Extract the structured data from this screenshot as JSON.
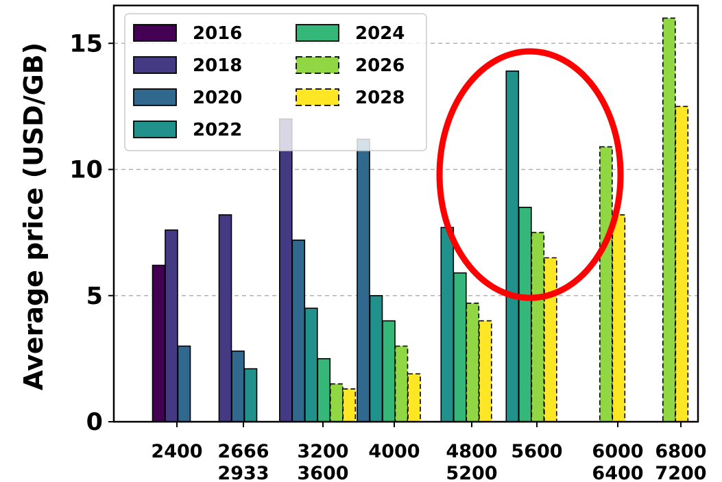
{
  "chart_data": {
    "type": "bar",
    "ylabel": "Average price (USD/GB)",
    "ylim": [
      0,
      16.5
    ],
    "yticks": [
      0,
      5,
      10,
      15
    ],
    "grid": "horizontal dashed",
    "legend_placement": "top-left",
    "x_tick_labels": [
      {
        "line1": "2400",
        "line2": ""
      },
      {
        "line1": "2666",
        "line2": "2933"
      },
      {
        "line1": "3200",
        "line2": "3600"
      },
      {
        "line1": "4000",
        "line2": ""
      },
      {
        "line1": "4800",
        "line2": "5200"
      },
      {
        "line1": "5600",
        "line2": ""
      },
      {
        "line1": "6000",
        "line2": "6400"
      },
      {
        "line1": "6800",
        "line2": "7200"
      }
    ],
    "series": [
      {
        "name": "2016",
        "color": "#440154",
        "dashed": false,
        "values": [
          6.2,
          null,
          null,
          null,
          null,
          null,
          null,
          null
        ]
      },
      {
        "name": "2018",
        "color": "#443983",
        "dashed": false,
        "values": [
          7.6,
          8.2,
          12.0,
          null,
          null,
          null,
          null,
          null
        ]
      },
      {
        "name": "2020",
        "color": "#31688e",
        "dashed": false,
        "values": [
          3.0,
          2.8,
          7.2,
          11.2,
          null,
          null,
          null,
          null
        ]
      },
      {
        "name": "2022",
        "color": "#21918c",
        "dashed": false,
        "values": [
          null,
          2.1,
          4.5,
          5.0,
          7.7,
          13.9,
          null,
          null
        ]
      },
      {
        "name": "2024",
        "color": "#35b779",
        "dashed": false,
        "values": [
          null,
          null,
          2.5,
          4.0,
          5.9,
          8.5,
          null,
          null
        ]
      },
      {
        "name": "2026",
        "color": "#90d743",
        "dashed": true,
        "values": [
          null,
          null,
          1.5,
          3.0,
          4.7,
          7.5,
          10.9,
          16.0
        ]
      },
      {
        "name": "2028",
        "color": "#fde725",
        "dashed": true,
        "values": [
          null,
          null,
          1.3,
          1.9,
          4.0,
          6.5,
          8.2,
          12.5
        ]
      }
    ],
    "annotation": {
      "shape": "ellipse",
      "color": "#ff0000",
      "highlights": "5600"
    }
  }
}
